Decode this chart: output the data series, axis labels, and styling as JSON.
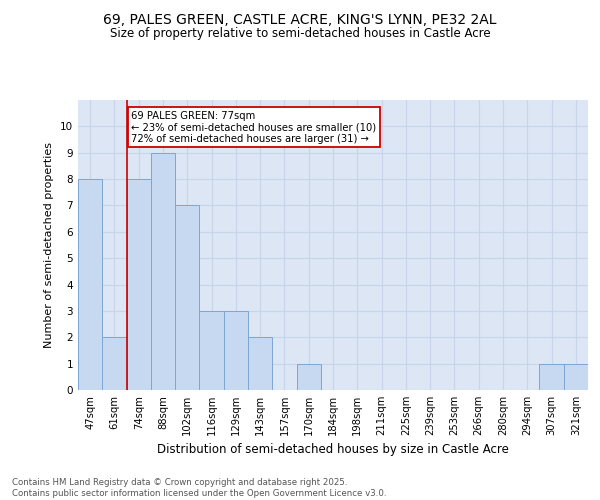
{
  "title": "69, PALES GREEN, CASTLE ACRE, KING'S LYNN, PE32 2AL",
  "subtitle": "Size of property relative to semi-detached houses in Castle Acre",
  "xlabel": "Distribution of semi-detached houses by size in Castle Acre",
  "ylabel": "Number of semi-detached properties",
  "bins": [
    "47sqm",
    "61sqm",
    "74sqm",
    "88sqm",
    "102sqm",
    "116sqm",
    "129sqm",
    "143sqm",
    "157sqm",
    "170sqm",
    "184sqm",
    "198sqm",
    "211sqm",
    "225sqm",
    "239sqm",
    "253sqm",
    "266sqm",
    "280sqm",
    "294sqm",
    "307sqm",
    "321sqm"
  ],
  "counts": [
    8,
    2,
    8,
    9,
    7,
    3,
    3,
    2,
    0,
    1,
    0,
    0,
    0,
    0,
    0,
    0,
    0,
    0,
    0,
    1,
    1
  ],
  "bar_color": "#c6d9f0",
  "bar_edge_color": "#7da6d4",
  "highlight_line_color": "#cc0000",
  "annotation_text": "69 PALES GREEN: 77sqm\n← 23% of semi-detached houses are smaller (10)\n72% of semi-detached houses are larger (31) →",
  "annotation_box_color": "#cc0000",
  "grid_color": "#c8d4e8",
  "background_color": "#dce6f5",
  "footer": "Contains HM Land Registry data © Crown copyright and database right 2025.\nContains public sector information licensed under the Open Government Licence v3.0.",
  "ylim": [
    0,
    11
  ],
  "yticks": [
    0,
    1,
    2,
    3,
    4,
    5,
    6,
    7,
    8,
    9,
    10,
    11
  ]
}
